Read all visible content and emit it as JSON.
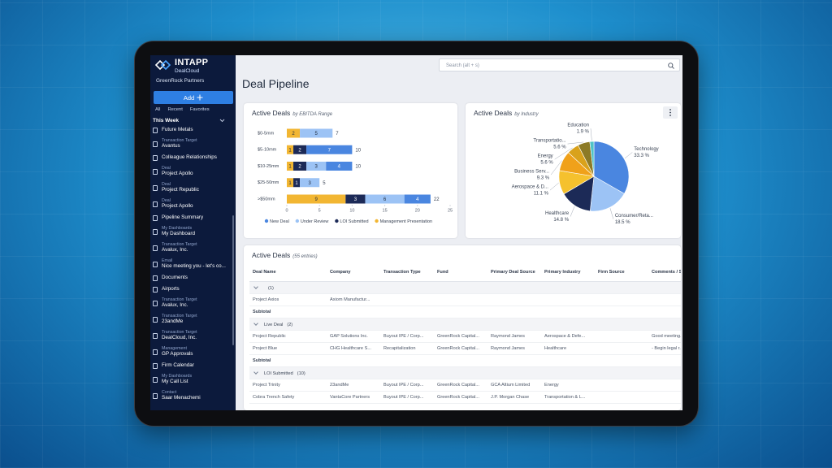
{
  "app": {
    "brand": "INTAPP",
    "product": "DealCloud",
    "firm": "GreenRock Partners",
    "add_button": "Add",
    "tabs": [
      "All",
      "Recent",
      "Favorites"
    ],
    "section": "This Week",
    "nav": [
      {
        "label": "Future Metals"
      },
      {
        "type": "Transaction Target",
        "label": "Avantus"
      },
      {
        "label": "Colleague Relationships"
      },
      {
        "type": "Deal",
        "label": "Project Apollo"
      },
      {
        "type": "Deal",
        "label": "Project Republic"
      },
      {
        "type": "Deal",
        "label": "Project Apollo"
      },
      {
        "label": "Pipeline Summary"
      },
      {
        "type": "My Dashboards",
        "label": "My Dashboard"
      },
      {
        "type": "Transaction Target",
        "label": "Avalux, Inc."
      },
      {
        "type": "Email",
        "label": "Nice meeting you - let's co..."
      },
      {
        "label": "Documents"
      },
      {
        "label": "Airports"
      },
      {
        "type": "Transaction Target",
        "label": "Avalux, Inc."
      },
      {
        "type": "Transaction Target",
        "label": "23andMe"
      },
      {
        "type": "Transaction Target",
        "label": "DealCloud, Inc."
      },
      {
        "type": "Management",
        "label": "GP Approvals"
      },
      {
        "label": "Firm Calendar"
      },
      {
        "type": "My Dashboards",
        "label": "My Call List"
      },
      {
        "type": "Contact",
        "label": "Saar Menachemi"
      }
    ]
  },
  "search_placeholder": "Search (alt + s)",
  "page_title": "Deal Pipeline",
  "chart_data": [
    {
      "type": "bar",
      "orientation": "horizontal",
      "stacked": true,
      "title": "Active Deals",
      "subtitle": "by EBITDA Range",
      "categories": [
        "$0-5mm",
        "$5-10mm",
        "$10-25mm",
        "$25-50mm",
        ">$50mm"
      ],
      "series": [
        {
          "name": "New Deal",
          "color": "#4a86e0",
          "values": [
            0,
            7,
            4,
            0,
            4
          ]
        },
        {
          "name": "Under Review",
          "color": "#9cc3f5",
          "values": [
            5,
            0,
            3,
            3,
            6
          ]
        },
        {
          "name": "LOI Submitted",
          "color": "#1c2a57",
          "values": [
            0,
            2,
            2,
            1,
            3
          ]
        },
        {
          "name": "Management Presentation",
          "color": "#f2b632",
          "values": [
            2,
            1,
            1,
            1,
            9
          ]
        }
      ],
      "totals": [
        7,
        10,
        10,
        5,
        22
      ],
      "xlim": [
        0,
        25
      ],
      "xticks": [
        0,
        5,
        10,
        15,
        20,
        25
      ],
      "legend": "bottom"
    },
    {
      "type": "pie",
      "title": "Active Deals",
      "subtitle": "by Industry",
      "categories": [
        "Technology",
        "Consumer/Reta...",
        "Healthcare",
        "Aerospace & D...",
        "Business Serv...",
        "Energy",
        "Transportatio...",
        "Education"
      ],
      "values": [
        33.3,
        18.5,
        14.8,
        11.1,
        9.3,
        5.6,
        5.6,
        1.9
      ],
      "value_labels": [
        "33.3 %",
        "18.5 %",
        "14.8 %",
        "11.1 %",
        "9.3 %",
        "5.6 %",
        "5.6 %",
        "1.9 %"
      ],
      "colors": [
        "#4a86e0",
        "#9cc3f5",
        "#1c2a57",
        "#f5c12e",
        "#f0a11a",
        "#d9a21b",
        "#8c7a26",
        "#4fc3c8"
      ]
    }
  ],
  "table": {
    "title": "Active Deals",
    "subtitle": "(55 entries)",
    "columns": [
      "Deal Name",
      "Company",
      "Transaction Type",
      "Fund",
      "Primary Deal Source",
      "Primary Industry",
      "Firm Source",
      "Comments / Steps"
    ],
    "groups": [
      {
        "name": null,
        "count": "(1)",
        "subtotal": "Subtotal",
        "rows": [
          [
            "Project Axios",
            "Axiom Manufactur...",
            null,
            null,
            null,
            null,
            null,
            null
          ]
        ]
      },
      {
        "name": "Live Deal",
        "count": "(2)",
        "subtotal": "Subtotal",
        "rows": [
          [
            "Project Republic",
            "GAP Solutions Inc.",
            "Buyout IPE / Corp...",
            "GreenRock Capital...",
            "Raymond James",
            "Aerospace & Defe...",
            null,
            "Good meeting..."
          ],
          [
            "Project Blue",
            "CHG Healthcare S...",
            "Recapitalization",
            "GreenRock Capital...",
            "Raymond James",
            "Healthcare",
            null,
            "- Begin legal r..."
          ]
        ]
      },
      {
        "name": "LOI Submitted",
        "count": "(10)",
        "rows": [
          [
            "Project Trinity",
            "23andMe",
            "Buyout IPE / Corp...",
            "GreenRock Capital...",
            "GCA Altium Limited",
            "Energy",
            null,
            null
          ],
          [
            "Cobra Trench Safety",
            "VantaCore Partners",
            "Buyout IPE / Corp...",
            "GreenRock Capital...",
            "J.P. Morgan Chase",
            "Transportation & L...",
            null,
            null
          ]
        ]
      }
    ]
  }
}
